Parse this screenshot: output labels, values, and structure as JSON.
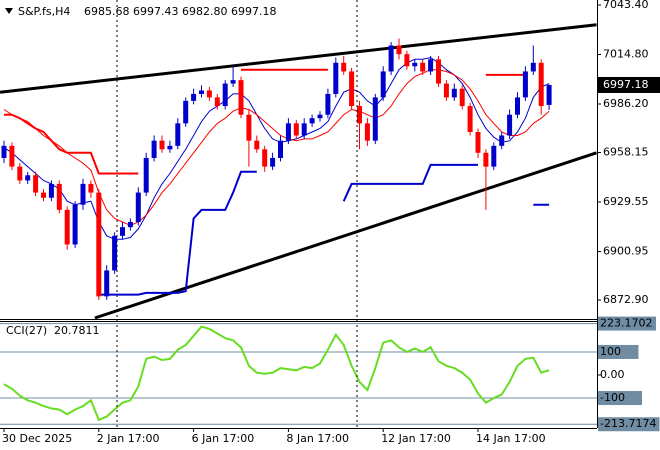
{
  "chart_data": [
    {
      "type": "candlestick",
      "symbol": "S&P.fs,H4",
      "header_prices": [
        "6985.68",
        "6997.43",
        "6982.80",
        "6997.18"
      ],
      "current_price_label": "6997.18",
      "categories": [
        "30 Dec 2025",
        null,
        null,
        null,
        null,
        null,
        null,
        null,
        null,
        null,
        null,
        null,
        "2 Jan 17:00",
        null,
        null,
        null,
        null,
        null,
        null,
        null,
        null,
        null,
        null,
        null,
        "6 Jan 17:00",
        null,
        null,
        null,
        null,
        null,
        null,
        null,
        null,
        null,
        null,
        null,
        "8 Jan 17:00",
        null,
        null,
        null,
        null,
        null,
        null,
        null,
        null,
        null,
        null,
        null,
        "12 Jan 17:00",
        null,
        null,
        null,
        null,
        null,
        null,
        null,
        null,
        null,
        null,
        null,
        "14 Jan 17:00",
        null,
        null,
        null,
        null,
        null,
        null,
        null,
        null,
        null
      ],
      "open": [
        6955,
        6962,
        6950,
        6942,
        6945,
        6935,
        6932,
        6940,
        6925,
        6905,
        6928,
        6940,
        6935,
        6875,
        6890,
        6910,
        6915,
        6918,
        6935,
        6955,
        6965,
        6960,
        6962,
        6975,
        6988,
        6992,
        6994,
        6990,
        6985,
        6998,
        7000,
        6980,
        6965,
        6960,
        6950,
        6955,
        6965,
        6975,
        6968,
        6975,
        6978,
        6980,
        6992,
        7010,
        7005,
        6985,
        6975,
        6965,
        6990,
        7005,
        7020,
        7015,
        7008,
        7010,
        7005,
        7012,
        6998,
        6990,
        6995,
        6985,
        6970,
        6958,
        6950,
        6962,
        6968,
        6980,
        6990,
        7005,
        7010,
        6985.68
      ],
      "high": [
        6965,
        6964,
        6952,
        6947,
        6947,
        6937,
        6942,
        6942,
        6927,
        6930,
        6943,
        6942,
        6937,
        6893,
        6912,
        6918,
        6920,
        6938,
        6958,
        6968,
        6968,
        6965,
        6978,
        6990,
        6995,
        6997,
        6996,
        6992,
        7000,
        7008,
        7002,
        6983,
        6968,
        6962,
        6958,
        6968,
        6978,
        6977,
        6978,
        6980,
        6982,
        6995,
        7013,
        7014,
        7007,
        6988,
        6978,
        6992,
        7008,
        7022,
        7024,
        7017,
        7012,
        7012,
        7014,
        7014,
        7000,
        6998,
        6997,
        6987,
        6972,
        6960,
        6964,
        6970,
        6983,
        6993,
        7008,
        7020,
        7012,
        6997.43
      ],
      "low": [
        6952,
        6948,
        6940,
        6940,
        6933,
        6930,
        6930,
        6923,
        6902,
        6903,
        6925,
        6932,
        6872.9,
        6873,
        6888,
        6908,
        6913,
        6916,
        6933,
        6953,
        6958,
        6958,
        6960,
        6973,
        6986,
        6990,
        6988,
        6983,
        6983,
        6996,
        6978,
        6950,
        6958,
        6947,
        6948,
        6953,
        6963,
        6966,
        6966,
        6973,
        6976,
        6978,
        6990,
        7003,
        6983,
        6960,
        6962,
        6963,
        6988,
        7003,
        7012,
        7006,
        7005,
        7003,
        7003,
        6996,
        6988,
        6988,
        6983,
        6968,
        6955,
        6925,
        6948,
        6960,
        6966,
        6978,
        6988,
        7003,
        6980,
        6982.8
      ],
      "close": [
        6962,
        6950,
        6942,
        6945,
        6935,
        6932,
        6940,
        6925,
        6905,
        6928,
        6940,
        6935,
        6875,
        6890,
        6910,
        6915,
        6918,
        6935,
        6955,
        6965,
        6960,
        6962,
        6975,
        6988,
        6992,
        6994,
        6990,
        6985,
        6998,
        7000,
        6980,
        6965,
        6960,
        6950,
        6955,
        6965,
        6975,
        6968,
        6975,
        6978,
        6980,
        6992,
        7010,
        7005,
        6985,
        6975,
        6965,
        6990,
        7005,
        7020,
        7015,
        7008,
        7010,
        7005,
        7012,
        6998,
        6990,
        6995,
        6985,
        6970,
        6958,
        6950,
        6962,
        6968,
        6980,
        6990,
        7005,
        7010,
        6985,
        6997.18
      ],
      "up_color": "#0000cd",
      "down_color": "#ff0000",
      "series": [
        {
          "color": "#0000cd",
          "width": 1,
          "values": [
            6961,
            6958,
            6954,
            6950,
            6946,
            6942,
            6940,
            6937,
            6930,
            6928,
            6929,
            6930,
            6918,
            6910,
            6908,
            6908,
            6909,
            6914,
            6922,
            6932,
            6940,
            6946,
            6953,
            6960,
            6968,
            6976,
            6982,
            6985,
            6988,
            6992,
            6992,
            6988,
            6980,
            6972,
            6966,
            6964,
            6965,
            6966,
            6968,
            6970,
            6972,
            6976,
            6985,
            6993,
            6995,
            6993,
            6988,
            6985,
            6990,
            6998,
            7006,
            7010,
            7012,
            7012,
            7013,
            7010,
            7006,
            7003,
            6998,
            6990,
            6980,
            6972,
            6967,
            6964,
            6965,
            6970,
            6978,
            6990,
            6996,
            6998
          ]
        },
        {
          "color": "#ff0000",
          "width": 1,
          "values": [
            6983,
            6980,
            6978,
            6976,
            6972,
            6968,
            6965,
            6962,
            6958,
            6955,
            6952,
            6948,
            6935,
            6925,
            6920,
            6918,
            6916,
            6918,
            6922,
            6928,
            6935,
            6940,
            6946,
            6952,
            6958,
            6964,
            6970,
            6975,
            6978,
            6982,
            6984,
            6983,
            6980,
            6976,
            6972,
            6968,
            6966,
            6965,
            6966,
            6966,
            6968,
            6970,
            6975,
            6980,
            6983,
            6982,
            6980,
            6978,
            6980,
            6985,
            6992,
            6998,
            7002,
            7004,
            7006,
            7006,
            7005,
            7003,
            7000,
            6995,
            6988,
            6980,
            6975,
            6970,
            6968,
            6968,
            6970,
            6975,
            6978,
            6982
          ]
        },
        {
          "color": "#ff0000",
          "width": 2,
          "values": [
            6980,
            6980,
            6978,
            6975,
            6972,
            6970,
            6965,
            6960,
            6958,
            6958,
            6958,
            6958,
            6946,
            6946,
            6946,
            6946,
            6946,
            6946,
            null,
            null,
            null,
            null,
            null,
            null,
            null,
            null,
            null,
            null,
            null,
            null,
            7006,
            7006,
            7006,
            7006,
            7006,
            7006,
            7006,
            7006,
            7006,
            7006,
            7006,
            7006,
            null,
            null,
            null,
            null,
            null,
            null,
            null,
            null,
            null,
            null,
            null,
            null,
            null,
            null,
            null,
            null,
            null,
            null,
            null,
            7003,
            7003,
            7003,
            7003,
            7003,
            7003,
            null,
            null,
            null
          ]
        },
        {
          "color": "#0000cd",
          "width": 2,
          "values": [
            null,
            null,
            null,
            null,
            null,
            null,
            null,
            null,
            null,
            null,
            null,
            null,
            6876,
            6876,
            6876,
            6876,
            6876,
            6876,
            6877,
            6877,
            6877,
            6877,
            6877,
            6878,
            6920,
            6925,
            6925,
            6925,
            6925,
            6935,
            6947,
            6947,
            6947,
            null,
            null,
            null,
            null,
            null,
            null,
            null,
            null,
            null,
            null,
            6930,
            6940,
            6940,
            6940,
            6940,
            6940,
            6940,
            6940,
            6940,
            6940,
            6940,
            6951,
            6951,
            6951,
            6951,
            6951,
            6951,
            6951,
            null,
            null,
            null,
            null,
            null,
            null,
            6928,
            6928,
            6928
          ]
        }
      ],
      "trendlines": [
        {
          "color": "#000000",
          "x": [
            -0.5,
            75
          ],
          "y": [
            6993,
            7032
          ]
        },
        {
          "color": "#000000",
          "x": [
            11.5,
            75
          ],
          "y": [
            6862.5,
            6958
          ]
        }
      ],
      "ylim": [
        6862.5,
        7046.3
      ],
      "yticks": [
        {
          "value": 7043.4,
          "label": "7043.40"
        },
        {
          "value": 7014.8,
          "label": "7014.80"
        },
        {
          "value": 6986.2,
          "label": "6986.20"
        },
        {
          "value": 6958.15,
          "label": "6958.15"
        },
        {
          "value": 6929.55,
          "label": "6929.55"
        },
        {
          "value": 6900.95,
          "label": "6900.95"
        },
        {
          "value": 6872.9,
          "label": "6872.90"
        }
      ]
    },
    {
      "type": "line",
      "title": "CCI(27)",
      "series": [
        {
          "color": "#66dd22",
          "width": 2,
          "values": [
            -40,
            -60,
            -90,
            -110,
            -120,
            -135,
            -145,
            -150,
            -170,
            -150,
            -135,
            -110,
            -195,
            -180,
            -150,
            -120,
            -110,
            -50,
            70,
            80,
            65,
            70,
            110,
            130,
            170,
            210,
            200,
            180,
            160,
            150,
            120,
            40,
            10,
            5,
            10,
            30,
            25,
            20,
            35,
            30,
            50,
            110,
            175,
            130,
            40,
            -30,
            -65,
            30,
            140,
            150,
            120,
            100,
            115,
            100,
            120,
            60,
            40,
            30,
            10,
            -20,
            -80,
            -120,
            -100,
            -85,
            -30,
            40,
            70,
            75,
            10,
            20.7811
          ]
        }
      ],
      "ylim": [
        -230,
        230
      ],
      "yticks": [
        223.1702,
        100,
        {
          "value": 0,
          "label": "0.00"
        },
        -100,
        -213.7174
      ],
      "level_color": "#6f8ca3"
    }
  ]
}
